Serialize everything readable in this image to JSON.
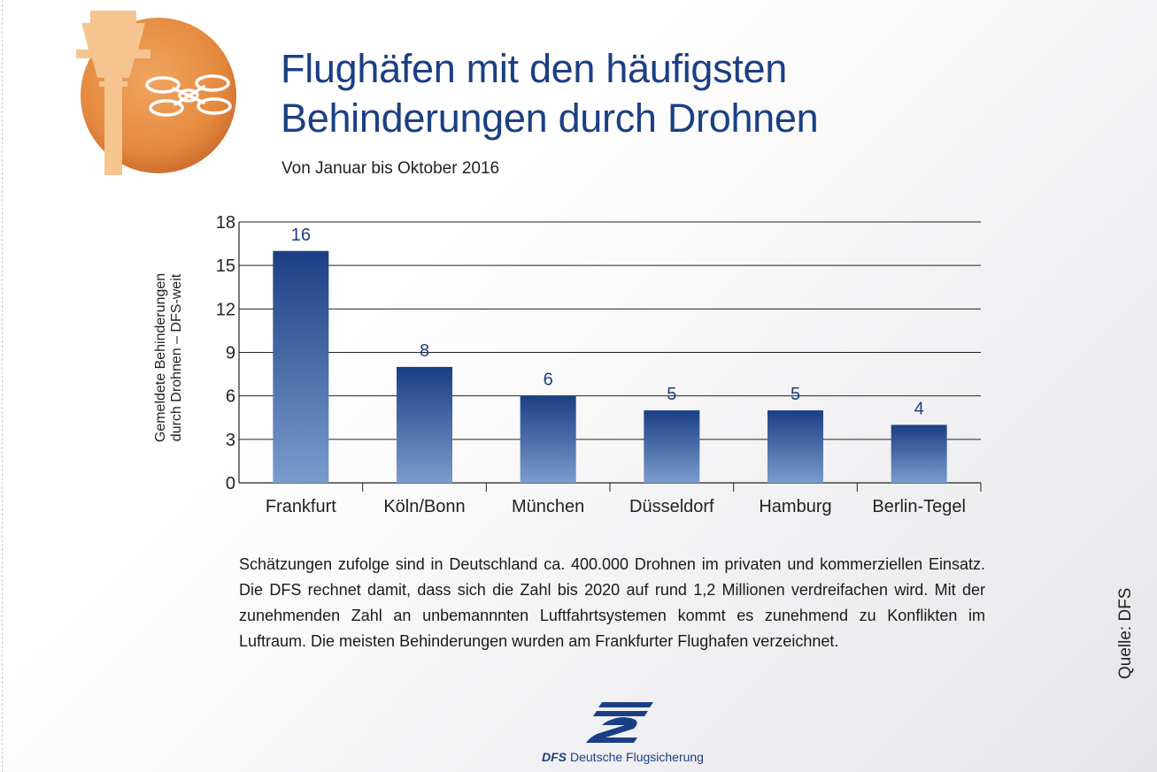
{
  "title_lines": [
    "Flughäfen mit den häufigsten",
    "Behinderungen durch Drohnen"
  ],
  "subtitle": "Von Januar bis Oktober 2016",
  "chart_data": {
    "type": "bar",
    "categories": [
      "Frankfurt",
      "Köln/Bonn",
      "München",
      "Düsseldorf",
      "Hamburg",
      "Berlin-Tegel"
    ],
    "values": [
      16,
      8,
      6,
      5,
      5,
      4
    ],
    "ylabel_lines": [
      "Gemeldete Behinderungen",
      "durch Drohnen – DFS-weit"
    ],
    "xlabel": "",
    "ylim": [
      0,
      18
    ],
    "yticks": [
      0,
      3,
      6,
      9,
      12,
      15,
      18
    ],
    "grid": true,
    "data_labels": true,
    "bar_color_top": "#1b3f85",
    "bar_color_bottom": "#7a9ccc"
  },
  "body_text": "Schätzungen zufolge sind in Deutschland ca. 400.000 Drohnen im privaten und kommerziellen Einsatz. Die DFS rechnet damit, dass sich die Zahl bis 2020 auf rund 1,2 Millionen verdreifachen wird. Mit der zunehmenden Zahl an unbemannnten Luftfahrtsystemen kommt es zunehmend zu Konflikten im Luftraum. Die meisten Behinderungen wurden am Frankfurter Flughafen verzeichnet.",
  "source": "Quelle: DFS",
  "footer": {
    "abbr": "DFS",
    "name": "Deutsche Flugsicherung"
  },
  "icons": {
    "badge": "drone-tower-icon",
    "footer": "dfs-logo-icon"
  },
  "colors": {
    "title": "#1b3f85",
    "badge_orange": "#e8914a",
    "badge_light": "#f6c58f"
  }
}
